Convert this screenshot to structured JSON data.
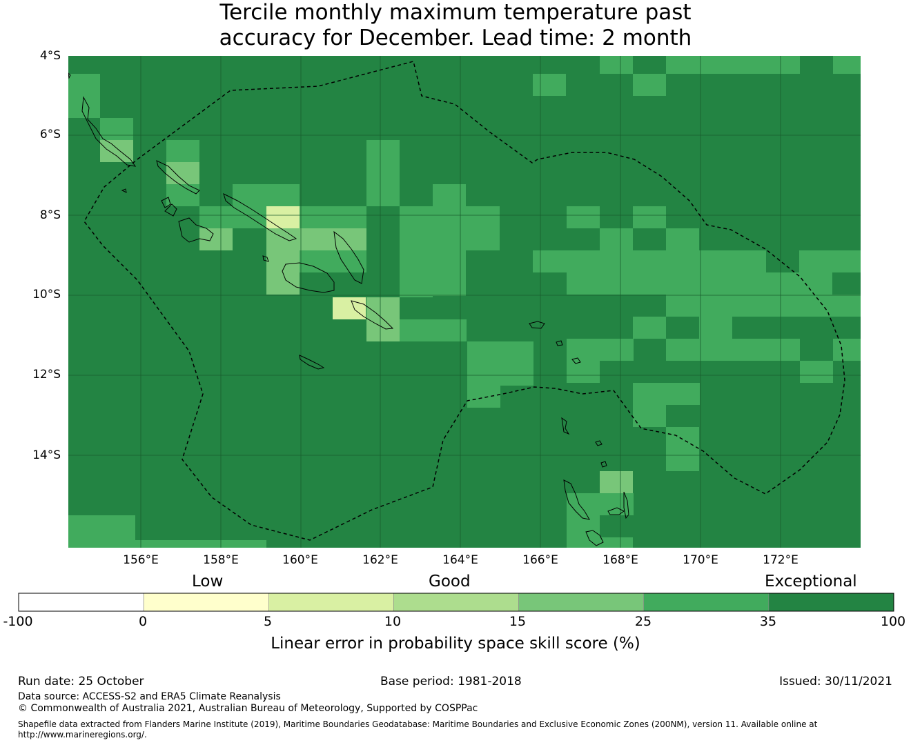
{
  "title": {
    "line1": "Tercile monthly maximum temperature past",
    "line2": "accuracy for December. Lead time: 2 month"
  },
  "map": {
    "lat_labels": [
      "4°S",
      "6°S",
      "8°S",
      "10°S",
      "12°S",
      "14°S"
    ],
    "lon_labels": [
      "156°E",
      "158°E",
      "160°E",
      "162°E",
      "164°E",
      "166°E",
      "168°E",
      "170°E",
      "172°E"
    ],
    "colors": {
      "c1": "#ffffcc",
      "c2": "#d9f0a3",
      "c3": "#addd8e",
      "c4": "#78c679",
      "c5": "#41ab5d",
      "c6": "#238443",
      "grid": "#1a5c2e",
      "land": "#000000"
    }
  },
  "colorbar": {
    "category_labels": [
      "Low",
      "Good",
      "Exceptional"
    ],
    "ticks": [
      "-100",
      "0",
      "5",
      "10",
      "15",
      "25",
      "35",
      "100"
    ],
    "colors": [
      "#ffffff",
      "#ffffcc",
      "#d9f0a3",
      "#addd8e",
      "#78c679",
      "#41ab5d",
      "#238443"
    ],
    "title": "Linear error in probability space skill score (%)"
  },
  "footer": {
    "run_date": "Run date: 25 October",
    "base_period": "Base period: 1981-2018",
    "issued": "Issued: 30/11/2021",
    "data_source": "Data source: ACCESS-S2 and ERA5 Climate Reanalysis",
    "copyright": "© Commonwealth of Australia 2021, Australian Bureau of Meteorology, Supported by COSPPac",
    "shapefile_line1": "Shapefile data extracted from Flanders Marine Institute (2019), Maritime Boundaries Geodatabase: Maritime Boundaries and Exclusive Economic Zones (200NM), version 11. Available online at",
    "shapefile_line2": "http://www.marineregions.org/."
  }
}
